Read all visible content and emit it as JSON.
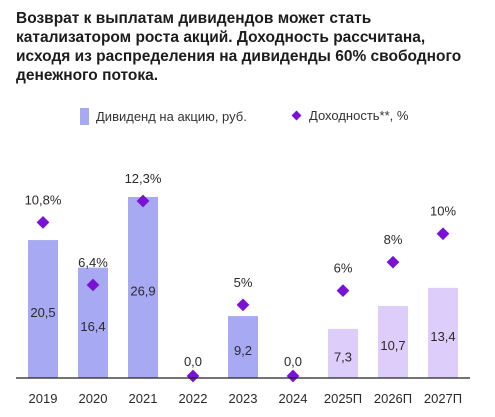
{
  "title_lines": [
    "Возврат к выплатам дивидендов может стать",
    "катализатором роста акций. Доходность рассчитана,",
    "исходя из распределения на дивиденды 60% свободного",
    "денежного потока."
  ],
  "colors": {
    "bar_actual": "#a7a9f2",
    "bar_forecast": "#dccdfa",
    "marker": "#7a12d6",
    "axis": "#222222"
  },
  "chart_data": {
    "type": "bar",
    "title": "Возврат к выплатам дивидендов может стать катализатором роста акций. Доходность рассчитана, исходя из распределения на дивиденды 60% свободного денежного потока.",
    "categories": [
      "2019",
      "2020",
      "2021",
      "2022",
      "2023",
      "2024",
      "2025П",
      "2026П",
      "2027П"
    ],
    "series": [
      {
        "name": "Дивиденд на акцию, руб.",
        "type": "bar",
        "values": [
          20.5,
          16.4,
          26.9,
          0.0,
          9.2,
          0.0,
          7.3,
          10.7,
          13.4
        ],
        "labels": [
          "20,5",
          "16,4",
          "26,9",
          "0,0",
          "9,2",
          "0,0",
          "7,3",
          "10,7",
          "13,4"
        ],
        "forecast_from_index": 6
      },
      {
        "name": "Доходность**, %",
        "type": "scatter",
        "values": [
          10.8,
          6.4,
          12.3,
          0,
          5,
          0,
          6,
          8,
          10
        ],
        "labels": [
          "10,8%",
          "6,4%",
          "12,3%",
          "",
          "5%",
          "",
          "6%",
          "8%",
          "10%"
        ]
      }
    ],
    "legend_position": "top",
    "grid": false,
    "dividend_ylim": [
      0,
      26.9
    ],
    "yield_ylim": [
      0,
      12.3
    ]
  }
}
